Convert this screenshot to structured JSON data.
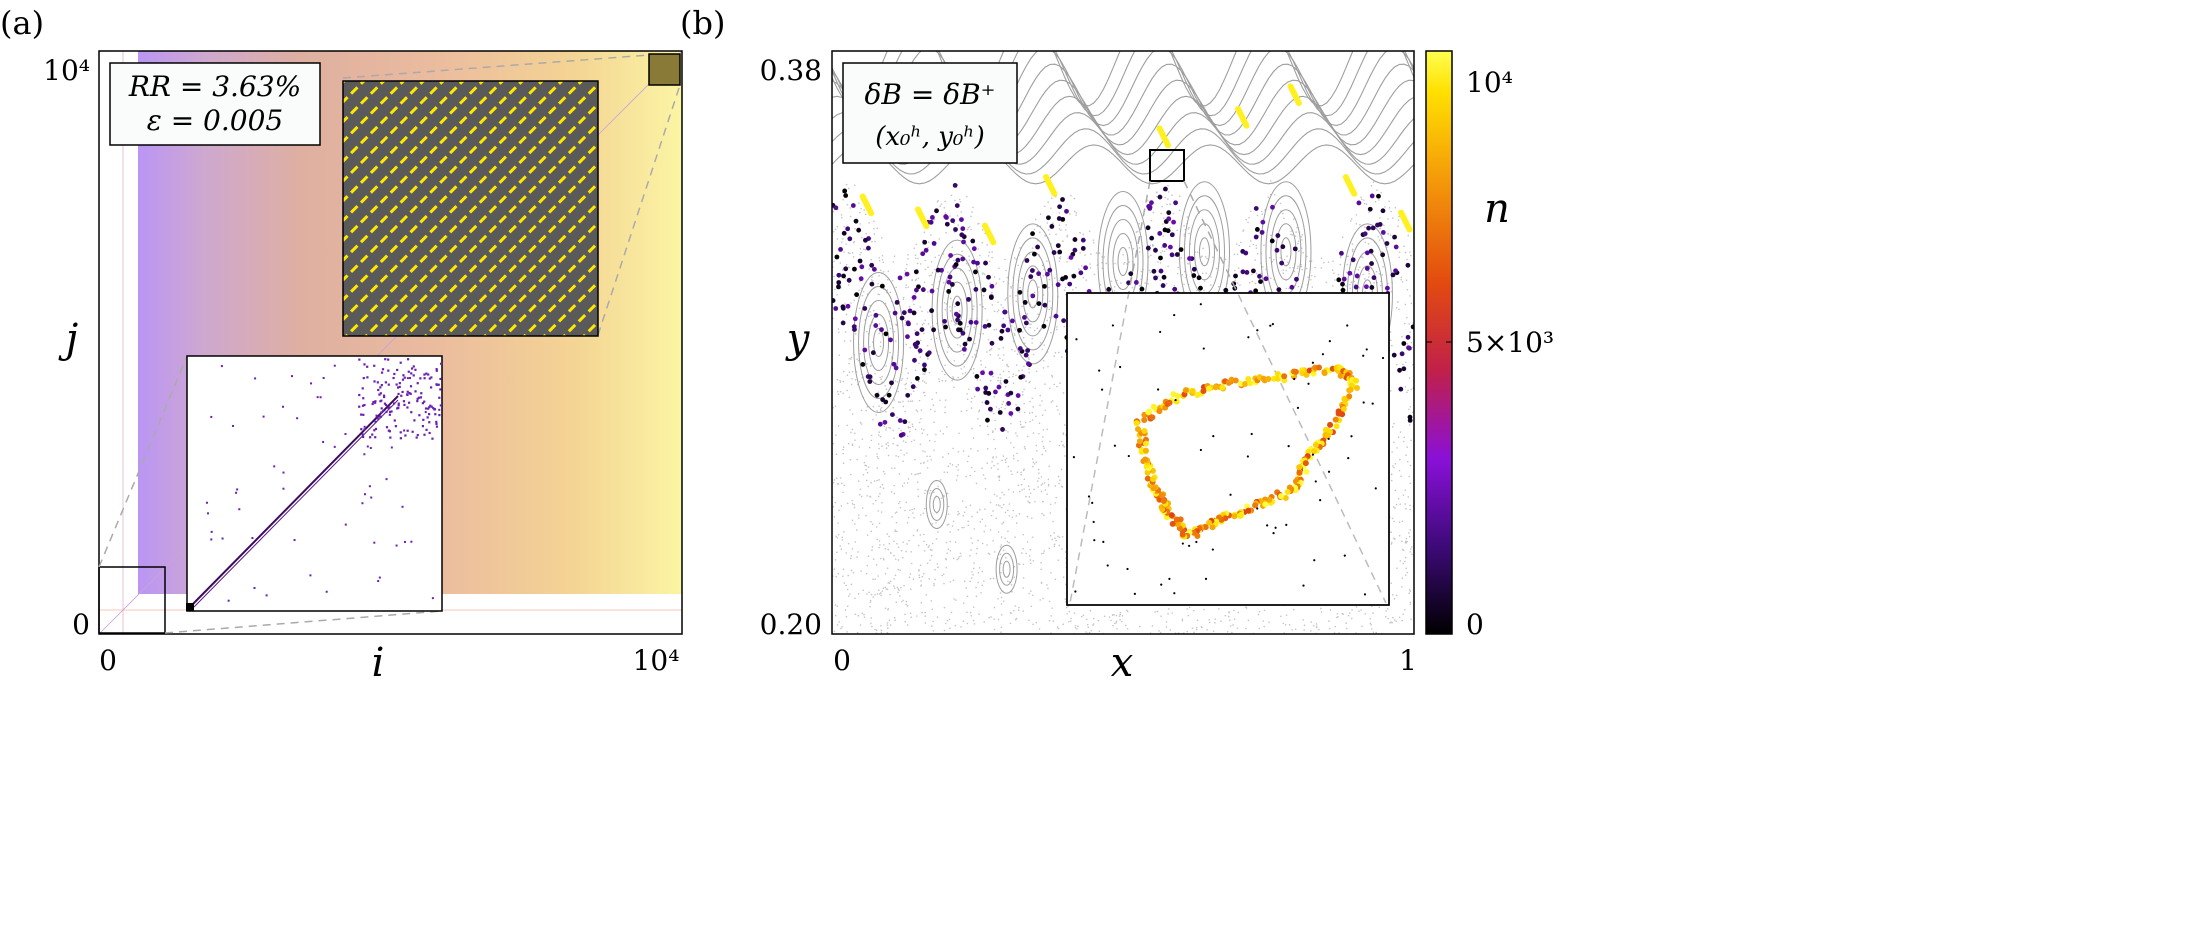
{
  "panel_a": {
    "letter": "(a)",
    "annotation_line1": "RR = 3.63%",
    "annotation_line2": "ε = 0.005",
    "x_label": "i",
    "y_label": "j",
    "x_ticks": [
      "0",
      "10⁴"
    ],
    "y_ticks": [
      "0",
      "10⁴"
    ]
  },
  "panel_b": {
    "letter": "(b)",
    "annotation_line1": "δB = δB⁺",
    "annotation_line2": "(x₀ʰ, y₀ʰ)",
    "x_label": "x",
    "y_label": "y",
    "x_ticks": [
      "0",
      "1"
    ],
    "y_ticks": [
      "0.20",
      "0.38"
    ],
    "colorbar_label": "n",
    "colorbar_ticks": [
      "10⁴",
      "5×10³",
      "0"
    ]
  },
  "colors": {
    "colormap": [
      "#000000",
      "#3d0a78",
      "#8a10d8",
      "#c0204a",
      "#e24a10",
      "#f49a0a",
      "#ffe000",
      "#ffff40"
    ],
    "grid_bg": "#5a5a5a",
    "grid_fg": "#ffe800",
    "island": "#9e9e9e",
    "chaos": "#c4c4c4"
  },
  "chart_data": [
    {
      "type": "heatmap",
      "panel": "a",
      "title": "",
      "xlabel": "i",
      "ylabel": "j",
      "xlim": [
        0,
        10000
      ],
      "ylim": [
        0,
        10000
      ],
      "recurrence_rate_percent": 3.63,
      "epsilon": 0.005
    },
    {
      "type": "scatter",
      "panel": "b",
      "title": "",
      "xlabel": "x",
      "ylabel": "y",
      "xlim": [
        0,
        1
      ],
      "ylim": [
        0.2,
        0.38
      ],
      "colorbar": {
        "label": "n",
        "range": [
          0,
          10000
        ],
        "ticks": [
          0,
          5000,
          10000
        ]
      },
      "sticky_segments": [
        {
          "x": 0.06,
          "y": 0.3325
        },
        {
          "x": 0.155,
          "y": 0.3285
        },
        {
          "x": 0.27,
          "y": 0.3235
        },
        {
          "x": 0.375,
          "y": 0.3385
        },
        {
          "x": 0.57,
          "y": 0.3535
        },
        {
          "x": 0.705,
          "y": 0.3595
        },
        {
          "x": 0.795,
          "y": 0.3665
        },
        {
          "x": 0.89,
          "y": 0.3385
        },
        {
          "x": 0.985,
          "y": 0.3275
        }
      ]
    }
  ]
}
